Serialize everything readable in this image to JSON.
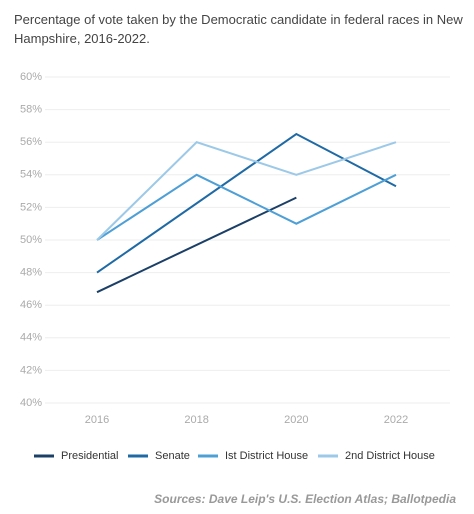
{
  "chart_data": {
    "type": "line",
    "title": "Percentage of vote taken by the Democratic candidate in federal races in New Hampshire, 2016-2022.",
    "source": "Sources: Dave Leip's U.S. Election Atlas; Ballotpedia",
    "xlim": [
      2016,
      2022
    ],
    "xticks": [
      2016,
      2018,
      2020,
      2022
    ],
    "ylim": [
      40,
      60
    ],
    "yticks": [
      {
        "value": 40,
        "label": "40%"
      },
      {
        "value": 42,
        "label": "42%"
      },
      {
        "value": 44,
        "label": "44%"
      },
      {
        "value": 46,
        "label": "46%"
      },
      {
        "value": 48,
        "label": "48%"
      },
      {
        "value": 50,
        "label": "50%"
      },
      {
        "value": 52,
        "label": "52%"
      },
      {
        "value": 54,
        "label": "54%"
      },
      {
        "value": 56,
        "label": "56%"
      },
      {
        "value": 58,
        "label": "58%"
      },
      {
        "value": 60,
        "label": "60%"
      }
    ],
    "grid": true,
    "series": [
      {
        "name": "Presidential",
        "color": "#1b3f66",
        "x": [
          2016,
          2020
        ],
        "values": [
          46.8,
          52.6
        ]
      },
      {
        "name": "Senate",
        "color": "#1f6aa5",
        "x": [
          2016,
          2020,
          2022
        ],
        "values": [
          48.0,
          56.5,
          53.3
        ]
      },
      {
        "name": "Ist District House",
        "color": "#4e9fd6",
        "x": [
          2016,
          2018,
          2020,
          2022
        ],
        "values": [
          50.0,
          54.0,
          51.0,
          54.0
        ]
      },
      {
        "name": "2nd District House",
        "color": "#9cc9e8",
        "x": [
          2016,
          2018,
          2020,
          2022
        ],
        "values": [
          50.0,
          56.0,
          54.0,
          56.0
        ]
      }
    ]
  }
}
